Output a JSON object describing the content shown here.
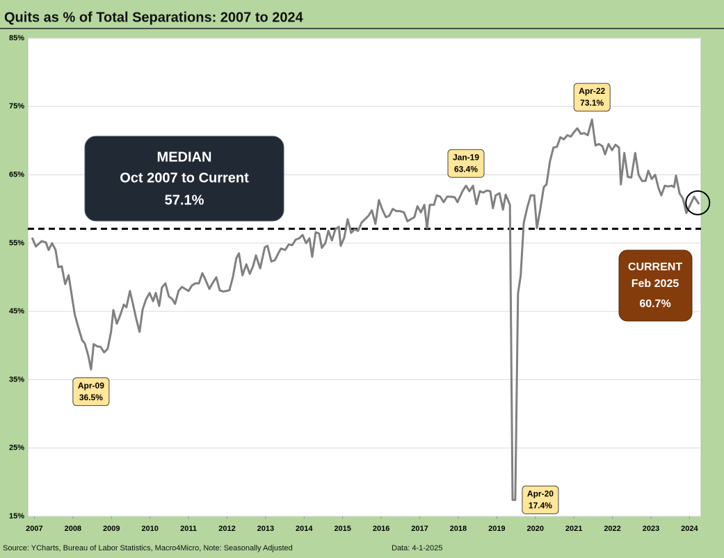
{
  "chart_data": {
    "type": "line",
    "title": "Quits as % of Total Separations: 2007 to 2024",
    "color": "#808080",
    "grid": true,
    "xlim": [
      2006.83,
      2024.3
    ],
    "xticks": [
      2007,
      2008,
      2009,
      2010,
      2011,
      2012,
      2013,
      2014,
      2015,
      2016,
      2017,
      2018,
      2019,
      2020,
      2021,
      2022,
      2023,
      2024
    ],
    "ylim": [
      15,
      85
    ],
    "yticks": [
      {
        "value": 15,
        "label": "15%"
      },
      {
        "value": 25,
        "label": "25%"
      },
      {
        "value": 35,
        "label": "35%"
      },
      {
        "value": 45,
        "label": "45%"
      },
      {
        "value": 55,
        "label": "55%"
      },
      {
        "value": 65,
        "label": "65%"
      },
      {
        "value": 75,
        "label": "75%"
      },
      {
        "value": 85,
        "label": "85%"
      }
    ],
    "x": [
      2006.94,
      2007.04,
      2007.19,
      2007.3,
      2007.37,
      2007.46,
      2007.55,
      2007.62,
      2007.71,
      2007.8,
      2007.89,
      2007.98,
      2008.05,
      2008.15,
      2008.24,
      2008.31,
      2008.4,
      2008.47,
      2008.54,
      2008.63,
      2008.72,
      2008.81,
      2008.9,
      2008.99,
      2009.05,
      2009.14,
      2009.23,
      2009.32,
      2009.39,
      2009.48,
      2009.55,
      2009.64,
      2009.73,
      2009.81,
      2009.9,
      2009.99,
      2010.08,
      2010.15,
      2010.24,
      2010.31,
      2010.4,
      2010.49,
      2010.58,
      2010.65,
      2010.74,
      2010.83,
      2010.91,
      2011.0,
      2011.09,
      2011.18,
      2011.27,
      2011.36,
      2011.45,
      2011.54,
      2011.63,
      2011.72,
      2011.81,
      2011.9,
      2012.06,
      2012.15,
      2012.24,
      2012.31,
      2012.4,
      2012.5,
      2012.59,
      2012.68,
      2012.75,
      2012.86,
      2012.98,
      2013.05,
      2013.15,
      2013.24,
      2013.33,
      2013.4,
      2013.51,
      2013.6,
      2013.69,
      2013.78,
      2013.87,
      2013.96,
      2014.05,
      2014.14,
      2014.21,
      2014.3,
      2014.39,
      2014.46,
      2014.55,
      2014.63,
      2014.72,
      2014.81,
      2014.9,
      2014.95,
      2015.04,
      2015.13,
      2015.22,
      2015.31,
      2015.4,
      2015.49,
      2015.58,
      2015.67,
      2015.76,
      2015.85,
      2015.94,
      2016.03,
      2016.12,
      2016.21,
      2016.3,
      2016.39,
      2016.48,
      2016.59,
      2016.68,
      2016.77,
      2016.86,
      2016.94,
      2017.03,
      2017.12,
      2017.19,
      2017.26,
      2017.37,
      2017.44,
      2017.53,
      2017.62,
      2017.71,
      2017.8,
      2017.91,
      2017.98,
      2018.11,
      2018.2,
      2018.29,
      2018.38,
      2018.47,
      2018.56,
      2018.65,
      2018.74,
      2018.83,
      2018.9,
      2018.97,
      2019.07,
      2019.16,
      2019.23,
      2019.34,
      2019.41,
      2019.48,
      2019.55,
      2019.62,
      2019.7,
      2019.79,
      2019.88,
      2019.97,
      2020.04,
      2020.13,
      2020.22,
      2020.29,
      2020.38,
      2020.47,
      2020.56,
      2020.65,
      2020.74,
      2020.83,
      2020.92,
      2021.01,
      2021.09,
      2021.18,
      2021.27,
      2021.36,
      2021.47,
      2021.56,
      2021.65,
      2021.74,
      2021.81,
      2021.9,
      2021.99,
      2022.08,
      2022.17,
      2022.22,
      2022.31,
      2022.4,
      2022.49,
      2022.59,
      2022.68,
      2022.77,
      2022.86,
      2022.93,
      2023.02,
      2023.11,
      2023.2,
      2023.27,
      2023.36,
      2023.45,
      2023.54,
      2023.6,
      2023.65,
      2023.74,
      2023.83,
      2023.92,
      2024.01,
      2024.12,
      2024.25
    ],
    "values": [
      55.8,
      54.5,
      55.3,
      55.1,
      54,
      55,
      54,
      51.5,
      51.6,
      49,
      50.3,
      47,
      44.5,
      42.5,
      40.8,
      40.3,
      38.5,
      36.5,
      40.2,
      39.9,
      39.8,
      39,
      39.5,
      42,
      45.2,
      43.2,
      44.5,
      46,
      45.6,
      48,
      46.3,
      44,
      42,
      45.3,
      46.8,
      47.7,
      46.5,
      47.7,
      45.8,
      48.5,
      49.1,
      47.2,
      46.8,
      46.1,
      48,
      48.6,
      48.3,
      48,
      48.8,
      49.1,
      49.1,
      50.6,
      49.5,
      48.3,
      49.2,
      50,
      48.1,
      47.9,
      48.1,
      50,
      52.8,
      53.5,
      50.3,
      51.9,
      50.5,
      51.7,
      53.2,
      51.3,
      54.4,
      54.6,
      52.3,
      52.5,
      53.5,
      54.2,
      54,
      54.8,
      54.7,
      55.5,
      55.7,
      56.2,
      55,
      55.7,
      53,
      56.6,
      56.4,
      54.3,
      55,
      56.8,
      55.4,
      57,
      57.4,
      54.6,
      55.8,
      58.5,
      56.5,
      57,
      56.8,
      58,
      58.5,
      59,
      59.8,
      57.8,
      61.3,
      59.9,
      58.8,
      59,
      60,
      59.7,
      59.7,
      59.5,
      58.2,
      58.5,
      58.8,
      60.4,
      59.5,
      60.6,
      57.2,
      60.6,
      60.6,
      62,
      61.8,
      61,
      61.8,
      61.8,
      61.7,
      61,
      62.6,
      63.4,
      62.6,
      63.4,
      60.7,
      62.6,
      62.4,
      62.7,
      62.6,
      60.1,
      62,
      62.3,
      59.9,
      62.1,
      60.6,
      17.4,
      17.4,
      47.6,
      50.3,
      58,
      60.2,
      62,
      62,
      57.2,
      60,
      63.2,
      63.6,
      67,
      69,
      69.1,
      70.5,
      70.2,
      70.8,
      70.6,
      71.3,
      71.8,
      71,
      71.1,
      70.8,
      73.1,
      69.3,
      69.5,
      69.2,
      68,
      69.5,
      68.6,
      69.4,
      69,
      63.6,
      68.2,
      64.7,
      64.6,
      68.2,
      65,
      64.1,
      64.1,
      65.6,
      64.4,
      65,
      63,
      62,
      63.4,
      63.3,
      63.4,
      63.2,
      64.9,
      62.3,
      61.5,
      59.4,
      60.5,
      61.8,
      60.7
    ],
    "annotations": [
      {
        "label": "Apr-09",
        "x": 2008.47,
        "value": 36.5,
        "value_label": "36.5%"
      },
      {
        "label": "Jan-19",
        "x": 2018.2,
        "value": 63.4,
        "value_label": "63.4%"
      },
      {
        "label": "Apr-20",
        "x": 2019.48,
        "value": 17.4,
        "value_label": "17.4%"
      },
      {
        "label": "Apr-22",
        "x": 2021.47,
        "value": 73.1,
        "value_label": "73.1%"
      }
    ],
    "median": {
      "value": 57.1,
      "lines": [
        "MEDIAN",
        "Oct 2007 to Current"
      ],
      "value_label": "57.1%"
    },
    "current": {
      "lines": [
        "CURRENT",
        "Feb 2025"
      ],
      "value": 60.7,
      "value_label": "60.7%"
    },
    "source": "Source: YCharts, Bureau of Labor Statistics, Macro4Micro, Note: Seasonally Adjusted",
    "data_date": "Data: 4-1-2025"
  }
}
